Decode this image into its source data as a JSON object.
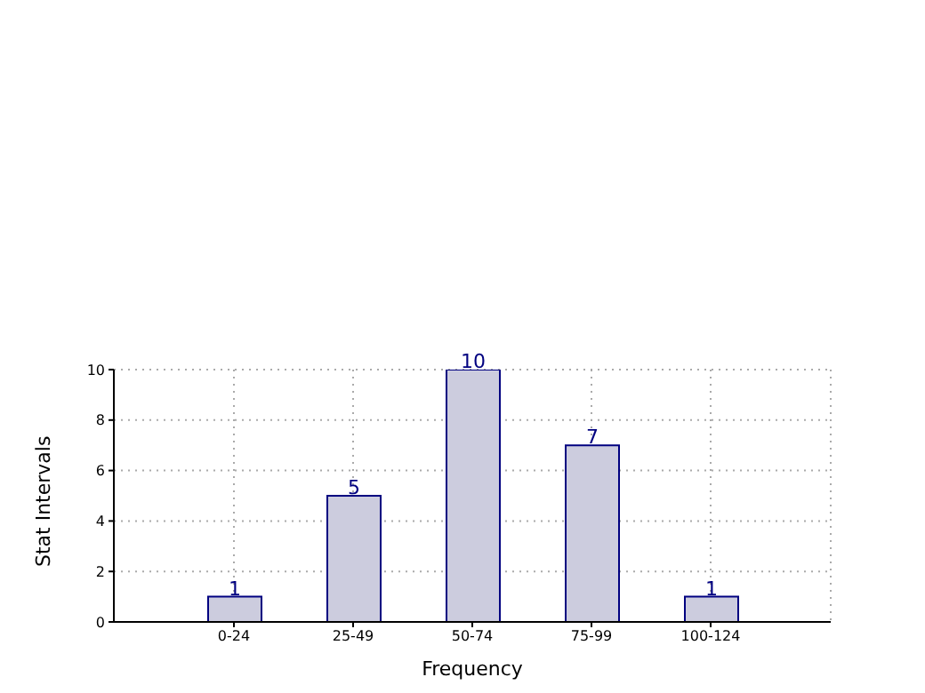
{
  "chart_data": {
    "type": "bar",
    "xlabel": "Frequency",
    "ylabel": "Stat Intervals",
    "categories": [
      "0-24",
      "25-49",
      "50-74",
      "75-99",
      "100-124"
    ],
    "values": [
      1,
      5,
      10,
      7,
      1
    ],
    "color": "#ccccde",
    "ylim": [
      0,
      10
    ],
    "yticks": [
      0,
      2,
      4,
      6,
      8,
      10
    ],
    "grid": true,
    "data_labels": true
  }
}
